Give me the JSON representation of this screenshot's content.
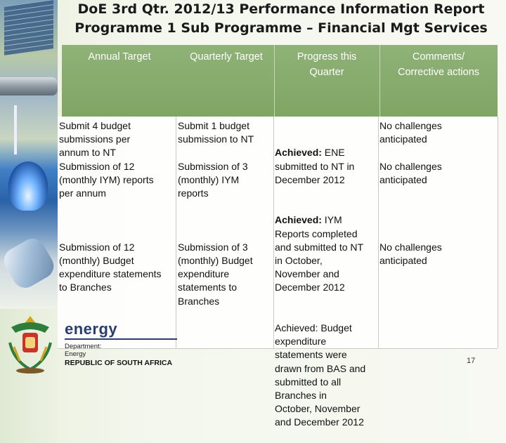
{
  "title": {
    "line1": "DoE 3rd Qtr. 2012/13 Performance Information Report",
    "line2": "Programme 1 Sub Programme – Financial Mgt Services"
  },
  "table": {
    "headers": [
      "Annual Target",
      "Quarterly Target",
      "Progress this\nQuarter",
      "Comments/\nCorrective actions"
    ],
    "col1": "Submit 4 budget\nsubmissions per\nannum to NT\nSubmission of 12\n(monthly IYM) reports\nper annum\n\n\n\nSubmission of 12\n(monthly) Budget\nexpenditure statements\nto Branches",
    "col2": "Submit 1 budget\nsubmission to NT\n\nSubmission of 3\n(monthly) IYM\nreports\n\n\n\nSubmission of 3\n(monthly) Budget\nexpenditure\nstatements to\nBranches",
    "col3_rows": [
      {
        "bold": "Achieved:",
        "text": " ENE\nsubmitted to NT in\nDecember 2012"
      },
      {
        "bold": "Achieved:",
        "text": " IYM\nReports completed\nand submitted to NT\nin October,\nNovember and\nDecember 2012"
      },
      {
        "bold": "",
        "text": "Achieved: Budget\nexpenditure\nstatements were\ndrawn from BAS and\nsubmitted to all\nBranches in\nOctober, November\nand December 2012"
      }
    ],
    "col4": "No challenges\nanticipated\n\nNo challenges\nanticipated\n\n\n\n\nNo challenges\nanticipated"
  },
  "footer": {
    "logo_word": "energy",
    "dept_line1": "Department:",
    "dept_line2": "Energy",
    "country": "REPUBLIC OF SOUTH AFRICA",
    "page_number": "17"
  }
}
